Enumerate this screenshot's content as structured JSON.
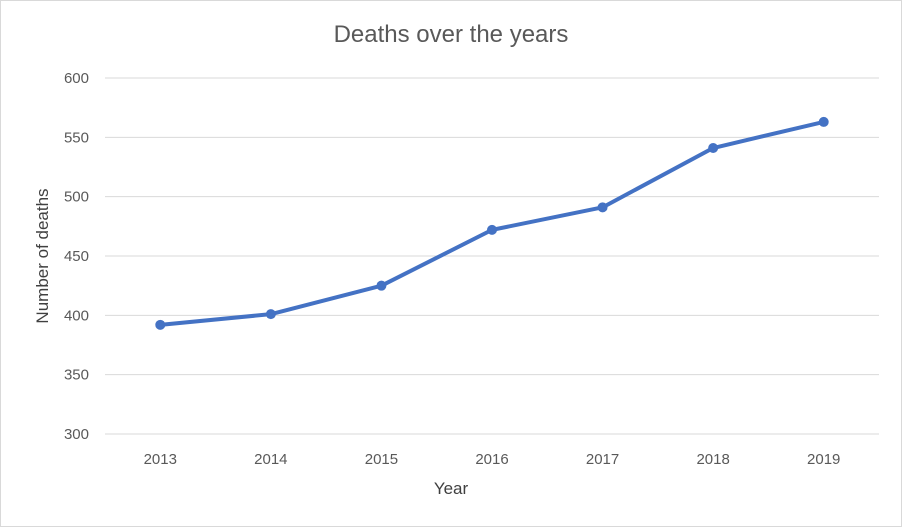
{
  "chart_data": {
    "type": "line",
    "title": "Deaths over the years",
    "xlabel": "Year",
    "ylabel": "Number of deaths",
    "categories": [
      "2013",
      "2014",
      "2015",
      "2016",
      "2017",
      "2018",
      "2019"
    ],
    "series": [
      {
        "values": [
          392,
          401,
          425,
          472,
          491,
          541,
          563
        ],
        "color": "#4472c4"
      }
    ],
    "ylim": [
      300,
      600
    ],
    "yticks": [
      300,
      350,
      400,
      450,
      500,
      550,
      600
    ],
    "grid": true,
    "legend": "none",
    "colors": {
      "line": "#4472c4",
      "grid": "#d9d9d9",
      "text": "#595959"
    }
  }
}
